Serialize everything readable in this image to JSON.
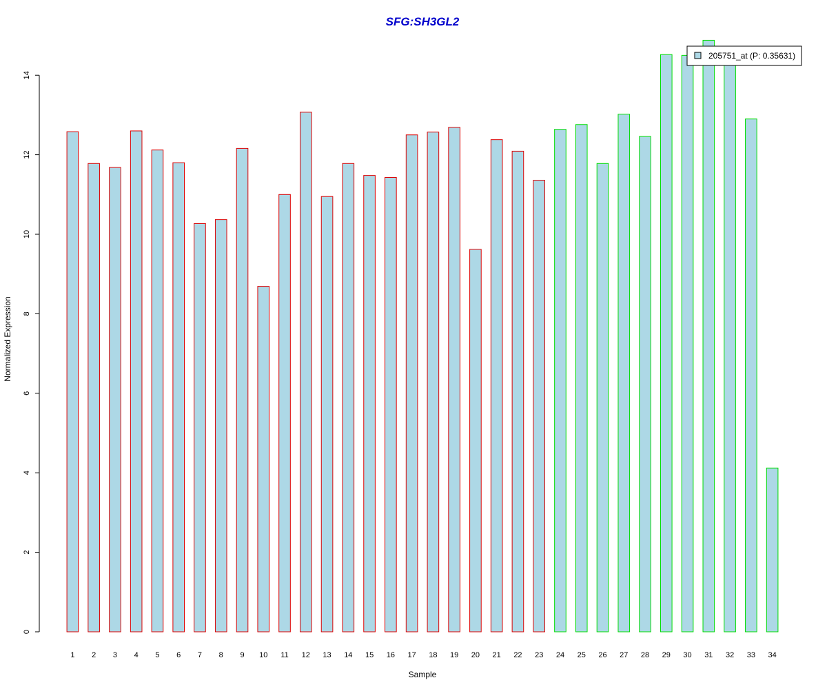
{
  "chart_data": {
    "type": "bar",
    "title": "SFG:SH3GL2",
    "xlabel": "Sample",
    "ylabel": "Normalized Expression",
    "ylim": [
      0,
      14.9
    ],
    "yticks": [
      0,
      2,
      4,
      6,
      8,
      10,
      12,
      14
    ],
    "categories": [
      "1",
      "2",
      "3",
      "4",
      "5",
      "6",
      "7",
      "8",
      "9",
      "10",
      "11",
      "12",
      "13",
      "14",
      "15",
      "16",
      "17",
      "18",
      "19",
      "20",
      "21",
      "22",
      "23",
      "24",
      "25",
      "26",
      "27",
      "28",
      "29",
      "30",
      "31",
      "32",
      "33",
      "34"
    ],
    "series": [
      {
        "name": "205751_at (P: 0.35631)",
        "values": [
          12.58,
          11.78,
          11.68,
          12.6,
          12.12,
          11.8,
          10.27,
          10.37,
          12.16,
          8.69,
          11.0,
          13.07,
          10.95,
          11.78,
          11.48,
          11.43,
          12.5,
          12.57,
          12.69,
          9.62,
          12.38,
          12.09,
          11.36,
          12.64,
          12.76,
          11.78,
          13.02,
          12.46,
          14.52,
          14.5,
          14.88,
          14.45,
          12.9,
          4.12
        ]
      }
    ],
    "groups": [
      {
        "samples": [
          1,
          23
        ],
        "border_color": "#dd0000"
      },
      {
        "samples": [
          24,
          34
        ],
        "border_color": "#00dd00"
      }
    ],
    "bar_fill": "#add8e6",
    "title_color": "#0000cc",
    "legend_position": "top-right",
    "grid": false
  }
}
